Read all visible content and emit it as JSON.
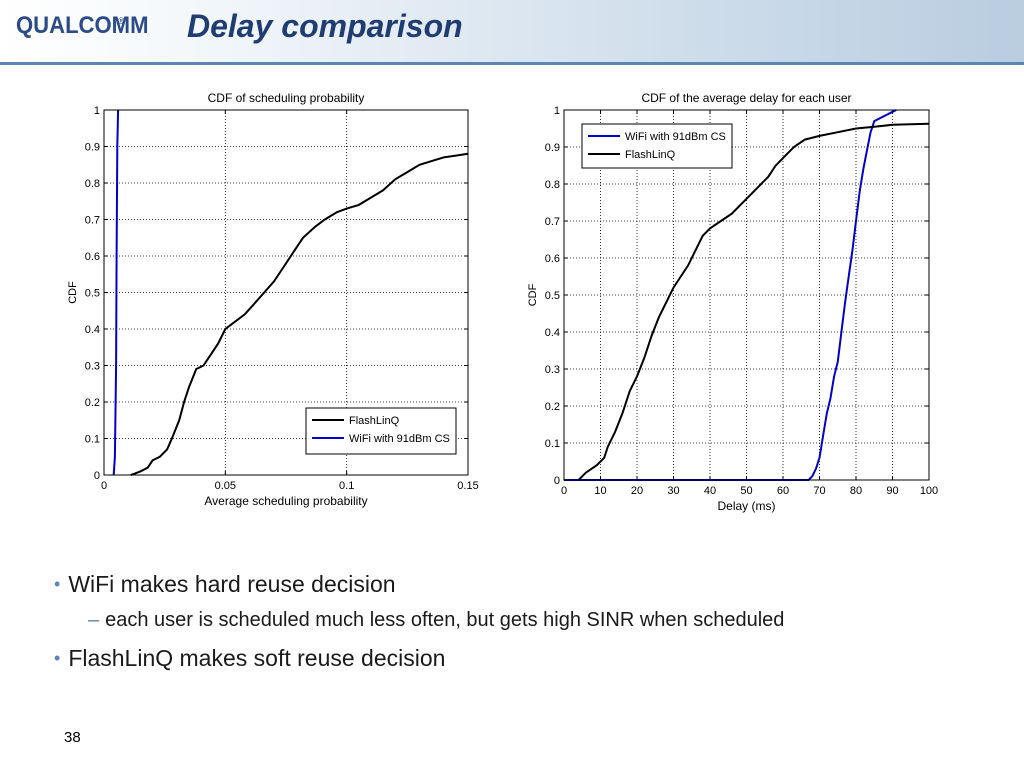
{
  "header": {
    "logo": "QUALCOMM",
    "logo_mark": "®",
    "title": "Delay comparison"
  },
  "colors": {
    "header_rule": "#5b85b3",
    "title": "#1f3d73",
    "flashlinq": "#000000",
    "wifi": "#0000cc"
  },
  "chart_data": [
    {
      "type": "line",
      "title": "CDF of scheduling probability",
      "xlabel": "Average scheduling probability",
      "ylabel": "CDF",
      "xlim": [
        0,
        0.15
      ],
      "ylim": [
        0,
        1
      ],
      "xticks": [
        "0",
        "0.05",
        "0.1",
        "0.15"
      ],
      "yticks": [
        "0",
        "0.1",
        "0.2",
        "0.3",
        "0.4",
        "0.5",
        "0.6",
        "0.7",
        "0.8",
        "0.9",
        "1"
      ],
      "grid": true,
      "legend_position": "bottom-right",
      "series": [
        {
          "name": "FlashLinQ",
          "color": "#000000",
          "points": [
            [
              0.011,
              0
            ],
            [
              0.015,
              0.01
            ],
            [
              0.018,
              0.02
            ],
            [
              0.02,
              0.04
            ],
            [
              0.023,
              0.05
            ],
            [
              0.026,
              0.07
            ],
            [
              0.028,
              0.1
            ],
            [
              0.031,
              0.15
            ],
            [
              0.033,
              0.2
            ],
            [
              0.035,
              0.24
            ],
            [
              0.038,
              0.29
            ],
            [
              0.041,
              0.3
            ],
            [
              0.044,
              0.33
            ],
            [
              0.047,
              0.36
            ],
            [
              0.05,
              0.4
            ],
            [
              0.054,
              0.42
            ],
            [
              0.058,
              0.44
            ],
            [
              0.062,
              0.47
            ],
            [
              0.066,
              0.5
            ],
            [
              0.07,
              0.53
            ],
            [
              0.074,
              0.57
            ],
            [
              0.078,
              0.61
            ],
            [
              0.082,
              0.65
            ],
            [
              0.087,
              0.68
            ],
            [
              0.091,
              0.7
            ],
            [
              0.096,
              0.72
            ],
            [
              0.1,
              0.73
            ],
            [
              0.105,
              0.74
            ],
            [
              0.11,
              0.76
            ],
            [
              0.115,
              0.78
            ],
            [
              0.12,
              0.81
            ],
            [
              0.125,
              0.83
            ],
            [
              0.13,
              0.85
            ],
            [
              0.135,
              0.86
            ],
            [
              0.14,
              0.87
            ],
            [
              0.145,
              0.875
            ],
            [
              0.15,
              0.88
            ]
          ]
        },
        {
          "name": "WiFi with 91dBm CS",
          "color": "#0000cc",
          "points": [
            [
              0.004,
              0
            ],
            [
              0.0045,
              0.05
            ],
            [
              0.005,
              0.3
            ],
            [
              0.0052,
              0.6
            ],
            [
              0.0055,
              0.9
            ],
            [
              0.0058,
              1
            ]
          ]
        }
      ]
    },
    {
      "type": "line",
      "title": "CDF of the average delay for each user",
      "xlabel": "Delay (ms)",
      "ylabel": "CDF",
      "xlim": [
        0,
        100
      ],
      "ylim": [
        0,
        1
      ],
      "xticks": [
        "0",
        "10",
        "20",
        "30",
        "40",
        "50",
        "60",
        "70",
        "80",
        "90",
        "100"
      ],
      "yticks": [
        "0",
        "0.1",
        "0.2",
        "0.3",
        "0.4",
        "0.5",
        "0.6",
        "0.7",
        "0.8",
        "0.9",
        "1"
      ],
      "grid": true,
      "legend_position": "top-left",
      "series": [
        {
          "name": "WiFi with 91dBm CS",
          "color": "#0000cc",
          "points": [
            [
              0,
              0
            ],
            [
              67,
              0
            ],
            [
              68,
              0.01
            ],
            [
              69,
              0.03
            ],
            [
              70,
              0.06
            ],
            [
              71,
              0.12
            ],
            [
              72,
              0.18
            ],
            [
              73,
              0.22
            ],
            [
              74,
              0.28
            ],
            [
              75,
              0.32
            ],
            [
              76,
              0.4
            ],
            [
              77,
              0.48
            ],
            [
              78,
              0.55
            ],
            [
              79,
              0.62
            ],
            [
              80,
              0.7
            ],
            [
              81,
              0.78
            ],
            [
              82,
              0.84
            ],
            [
              83,
              0.89
            ],
            [
              84,
              0.94
            ],
            [
              85,
              0.97
            ],
            [
              87,
              0.98
            ],
            [
              89,
              0.99
            ],
            [
              91,
              1
            ]
          ]
        },
        {
          "name": "FlashLinQ",
          "color": "#000000",
          "points": [
            [
              4,
              0
            ],
            [
              6,
              0.02
            ],
            [
              9,
              0.04
            ],
            [
              11,
              0.06
            ],
            [
              12,
              0.09
            ],
            [
              14,
              0.13
            ],
            [
              16,
              0.18
            ],
            [
              18,
              0.24
            ],
            [
              20,
              0.28
            ],
            [
              22,
              0.33
            ],
            [
              24,
              0.39
            ],
            [
              26,
              0.44
            ],
            [
              28,
              0.48
            ],
            [
              30,
              0.52
            ],
            [
              32,
              0.55
            ],
            [
              34,
              0.58
            ],
            [
              36,
              0.62
            ],
            [
              38,
              0.66
            ],
            [
              40,
              0.68
            ],
            [
              43,
              0.7
            ],
            [
              46,
              0.72
            ],
            [
              48,
              0.74
            ],
            [
              50,
              0.76
            ],
            [
              53,
              0.79
            ],
            [
              56,
              0.82
            ],
            [
              58,
              0.85
            ],
            [
              61,
              0.88
            ],
            [
              63,
              0.9
            ],
            [
              66,
              0.92
            ],
            [
              70,
              0.93
            ],
            [
              75,
              0.94
            ],
            [
              80,
              0.95
            ],
            [
              85,
              0.955
            ],
            [
              90,
              0.96
            ],
            [
              100,
              0.963
            ]
          ]
        }
      ]
    }
  ],
  "bullets": {
    "b1": "WiFi makes hard reuse decision",
    "b1_sub": "each user is scheduled much less often, but gets high SINR when scheduled",
    "b2": "FlashLinQ makes soft reuse decision",
    "dot": "•",
    "dash": "–"
  },
  "page_number": "38"
}
